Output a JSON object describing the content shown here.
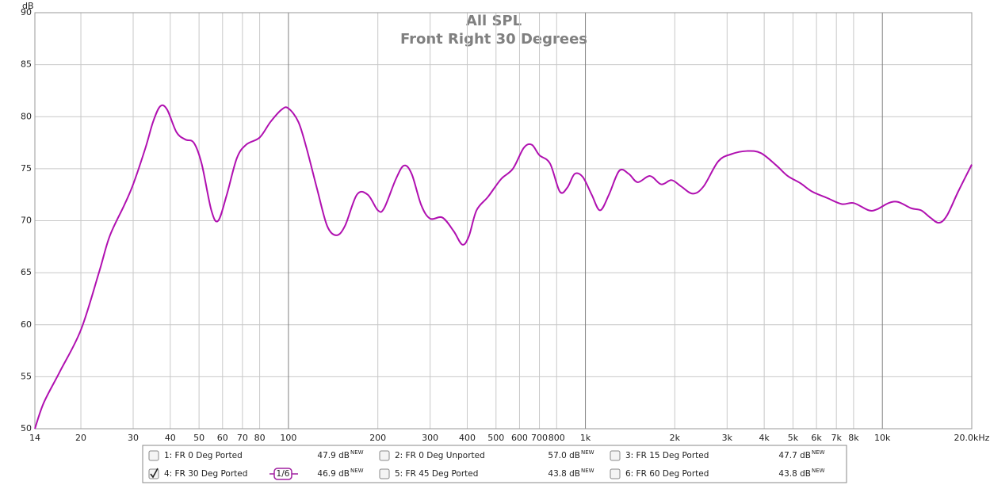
{
  "chart_data": {
    "type": "line",
    "title": "All SPL",
    "subtitle": "Front Right 30 Degrees",
    "y_unit": "dB",
    "log_x": true,
    "grid": true,
    "xlim": [
      14,
      20000
    ],
    "ylim": [
      50,
      90
    ],
    "yticks": [
      50,
      55,
      60,
      65,
      70,
      75,
      80,
      85,
      90
    ],
    "xticks": [
      14,
      20,
      30,
      40,
      50,
      60,
      70,
      80,
      100,
      200,
      300,
      400,
      500,
      600,
      700,
      800,
      {
        "value": 1000,
        "label": "1k"
      },
      {
        "value": 2000,
        "label": "2k"
      },
      {
        "value": 3000,
        "label": "3k"
      },
      {
        "value": 4000,
        "label": "4k"
      },
      {
        "value": 5000,
        "label": "5k"
      },
      {
        "value": 6000,
        "label": "6k"
      },
      {
        "value": 7000,
        "label": "7k"
      },
      {
        "value": 8000,
        "label": "8k"
      },
      {
        "value": 10000,
        "label": "10k"
      },
      {
        "value": 20000,
        "label": "20.0kHz"
      }
    ],
    "x": [
      14,
      15,
      17,
      20,
      23,
      25,
      28,
      30,
      33,
      35,
      37,
      39,
      42,
      45,
      48,
      51,
      55,
      58,
      62,
      67,
      72,
      80,
      87,
      95,
      100,
      108,
      115,
      125,
      135,
      145,
      155,
      170,
      185,
      200,
      210,
      230,
      245,
      260,
      280,
      300,
      330,
      360,
      385,
      405,
      430,
      470,
      520,
      570,
      620,
      660,
      700,
      760,
      820,
      870,
      920,
      980,
      1050,
      1120,
      1200,
      1300,
      1400,
      1500,
      1650,
      1800,
      1950,
      2100,
      2300,
      2500,
      2800,
      3100,
      3500,
      3900,
      4400,
      4800,
      5300,
      5800,
      6500,
      7300,
      8000,
      9000,
      9600,
      10500,
      11300,
      12500,
      13500,
      14500,
      15500,
      16500,
      18000,
      20000
    ],
    "series": [
      {
        "name": "4: FR 30 Deg Ported",
        "color": "#b010b0",
        "values": [
          50,
          52.5,
          55.5,
          59.5,
          65,
          68.5,
          71.5,
          73.5,
          77,
          79.5,
          81,
          80.7,
          78.5,
          77.8,
          77.5,
          75.5,
          71,
          70,
          72.5,
          76,
          77.3,
          78,
          79.5,
          80.7,
          80.8,
          79.5,
          77,
          73,
          69.5,
          68.6,
          69.5,
          72.5,
          72.5,
          71,
          71.2,
          74,
          75.3,
          74.5,
          71.5,
          70.2,
          70.3,
          69,
          67.7,
          68.5,
          71,
          72.3,
          74,
          75,
          77,
          77.3,
          76.3,
          75.5,
          72.8,
          73.2,
          74.5,
          74.2,
          72.5,
          71,
          72.5,
          74.8,
          74.5,
          73.7,
          74.3,
          73.5,
          73.9,
          73.3,
          72.6,
          73.3,
          75.7,
          76.4,
          76.7,
          76.5,
          75.3,
          74.3,
          73.6,
          72.8,
          72.2,
          71.6,
          71.7,
          71,
          71.1,
          71.7,
          71.8,
          71.2,
          71,
          70.3,
          69.8,
          70.5,
          72.8,
          75.4
        ]
      }
    ],
    "legend_entries": [
      {
        "label": "1: FR 0 Deg Ported",
        "level": "47.9 dB",
        "tag": "NEW",
        "color": "#b22222",
        "checked": false
      },
      {
        "label": "2: FR 0 Deg Unported",
        "level": "57.0 dB",
        "tag": "NEW",
        "color": "#1e8b1e",
        "checked": false
      },
      {
        "label": "3: FR 15 Deg Ported",
        "level": "47.7 dB",
        "tag": "NEW",
        "color": "#4f4fb0",
        "checked": false
      },
      {
        "label": "4: FR 30 Deg Ported",
        "level": "46.9 dB",
        "tag": "NEW",
        "color": "#a020a0",
        "checked": true,
        "smoothing": "1/6"
      },
      {
        "label": "5: FR 45 Deg Ported",
        "level": "43.8 dB",
        "tag": "NEW",
        "color": "#1f7f86",
        "checked": false
      },
      {
        "label": "6: FR 60 Deg Ported",
        "level": "43.8 dB",
        "tag": "NEW",
        "color": "#b8900c",
        "checked": false
      }
    ]
  }
}
